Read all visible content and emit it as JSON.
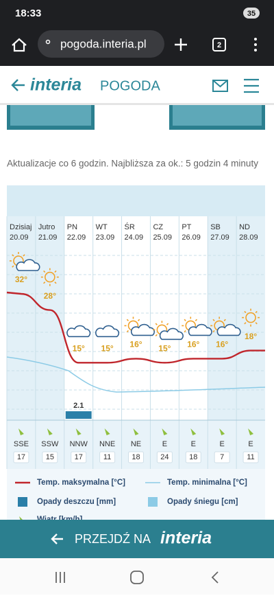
{
  "status_bar": {
    "time": "18:33",
    "battery": "35"
  },
  "browser": {
    "url": "pogoda.interia.pl",
    "tabs": "2"
  },
  "header": {
    "logo": "interia",
    "section": "POGODA"
  },
  "update_note": "Aktualizacje co 6 godzin. Najbliższa za ok.: 5 godzin 4 minuty",
  "forecast": {
    "days": [
      {
        "name": "Dzisiaj",
        "date": "20.09",
        "max_temp": "32°",
        "wind_dir": "SSE",
        "wind_speed": "17"
      },
      {
        "name": "Jutro",
        "date": "21.09",
        "max_temp": "28°",
        "wind_dir": "SSW",
        "wind_speed": "15"
      },
      {
        "name": "PN",
        "date": "22.09",
        "max_temp": "15°",
        "wind_dir": "NNW",
        "wind_speed": "17"
      },
      {
        "name": "WT",
        "date": "23.09",
        "max_temp": "15°",
        "wind_dir": "NNE",
        "wind_speed": "11"
      },
      {
        "name": "ŚR",
        "date": "24.09",
        "max_temp": "16°",
        "wind_dir": "NE",
        "wind_speed": "18"
      },
      {
        "name": "CZ",
        "date": "25.09",
        "max_temp": "15°",
        "wind_dir": "E",
        "wind_speed": "24"
      },
      {
        "name": "PT",
        "date": "26.09",
        "max_temp": "16°",
        "wind_dir": "E",
        "wind_speed": "18"
      },
      {
        "name": "SB",
        "date": "27.09",
        "max_temp": "16°",
        "wind_dir": "E",
        "wind_speed": "7"
      },
      {
        "name": "ND",
        "date": "28.09",
        "max_temp": "18°",
        "wind_dir": "E",
        "wind_speed": "11"
      }
    ],
    "rain": {
      "day": "PN",
      "label": "2.1"
    }
  },
  "legend": [
    "Temp. maksymalna [°C]",
    "Temp. minimalna [°C]",
    "Opady deszczu [mm]",
    "Opady śniegu [cm]",
    "Wiatr [km/h]"
  ],
  "footer": {
    "cta": "PRZEJDŹ NA",
    "logo": "interia"
  }
}
